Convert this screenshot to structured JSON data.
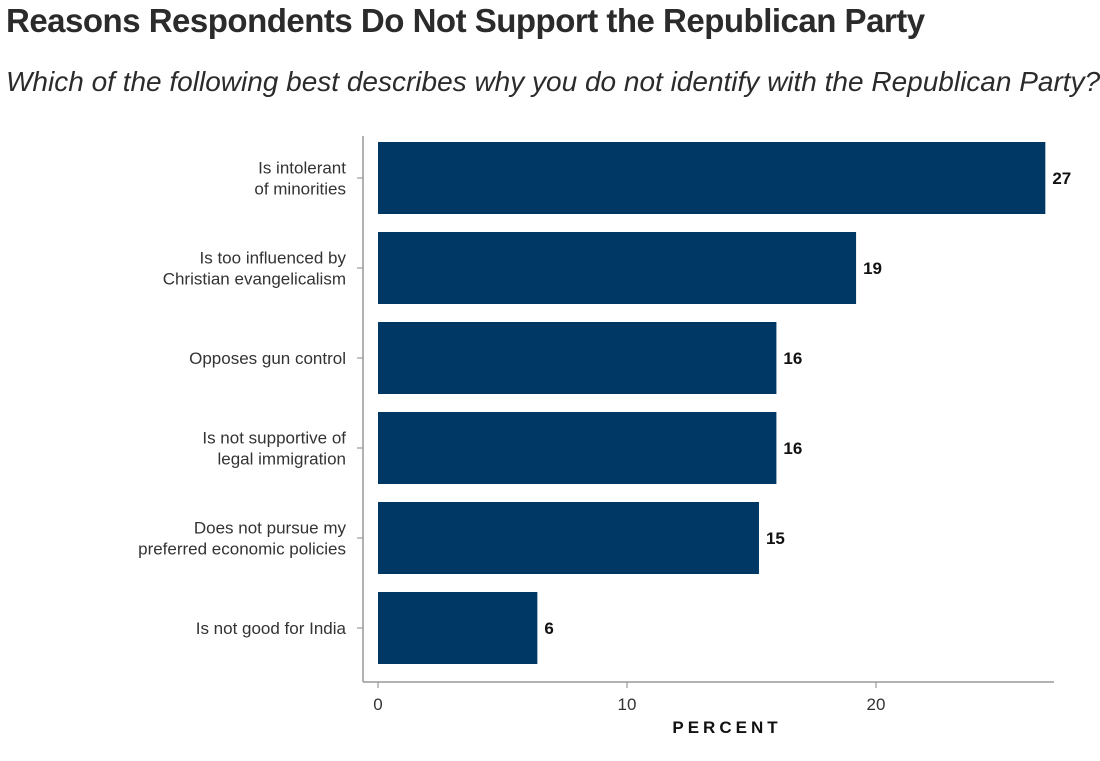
{
  "title": "Reasons Respondents Do Not Support the Republican Party",
  "subtitle": "Which of the following best describes why you do not identify with the Republican Party?",
  "colors": {
    "bar": "#003865",
    "axis": "#999999"
  },
  "chart_data": {
    "type": "bar",
    "orientation": "horizontal",
    "categories": [
      [
        "Is intolerant",
        "of minorities"
      ],
      [
        "Is too influenced by",
        "Christian evangelicalism"
      ],
      [
        "Opposes gun control"
      ],
      [
        "Is not supportive of",
        "legal immigration"
      ],
      [
        "Does not pursue my",
        "preferred economic policies"
      ],
      [
        "Is not good for India"
      ]
    ],
    "values": [
      27,
      19,
      16,
      16,
      15,
      6
    ],
    "bar_lengths": [
      26.8,
      19.2,
      16.0,
      16.0,
      15.3,
      6.4
    ],
    "xlabel": "PERCENT",
    "ylabel": "",
    "xlim": [
      -0.6,
      27.0
    ],
    "xticks": [
      0,
      10,
      20
    ],
    "grid": false,
    "legend": "none"
  }
}
